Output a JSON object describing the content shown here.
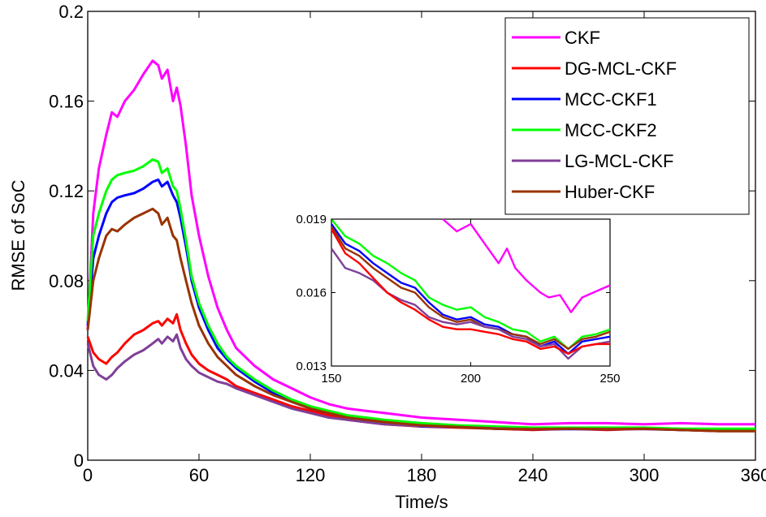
{
  "chart_data": {
    "type": "line",
    "title": "",
    "xlabel": "Time/s",
    "ylabel": "RMSE of SoC",
    "xlim": [
      0,
      360
    ],
    "ylim": [
      0,
      0.2
    ],
    "xticks": [
      0,
      60,
      120,
      180,
      240,
      300,
      360
    ],
    "yticks": [
      0,
      0.04,
      0.08,
      0.12,
      0.16,
      0.2
    ],
    "xtick_labels": [
      "0",
      "60",
      "120",
      "180",
      "240",
      "300",
      "360"
    ],
    "ytick_labels": [
      "0",
      "0.04",
      "0.08",
      "0.12",
      "0.16",
      "0.2"
    ],
    "grid": false,
    "legend_position": "top-right",
    "series": [
      {
        "name": "CKF",
        "color": "#ff00ff",
        "x": [
          0,
          3,
          6,
          10,
          13,
          16,
          20,
          25,
          30,
          35,
          38,
          40,
          43,
          46,
          48,
          50,
          53,
          56,
          60,
          65,
          70,
          75,
          80,
          90,
          100,
          110,
          120,
          130,
          140,
          150,
          160,
          180,
          200,
          220,
          240,
          260,
          280,
          300,
          320,
          340,
          360
        ],
        "y": [
          0.058,
          0.11,
          0.13,
          0.145,
          0.155,
          0.153,
          0.16,
          0.165,
          0.172,
          0.178,
          0.176,
          0.17,
          0.174,
          0.16,
          0.166,
          0.158,
          0.14,
          0.118,
          0.1,
          0.082,
          0.068,
          0.058,
          0.05,
          0.042,
          0.036,
          0.032,
          0.028,
          0.025,
          0.023,
          0.022,
          0.021,
          0.019,
          0.018,
          0.017,
          0.016,
          0.0165,
          0.0165,
          0.016,
          0.0165,
          0.016,
          0.016
        ]
      },
      {
        "name": "DG-MCL-CKF",
        "color": "#ff0000",
        "x": [
          0,
          3,
          6,
          10,
          13,
          16,
          20,
          25,
          30,
          35,
          38,
          40,
          43,
          46,
          48,
          50,
          53,
          56,
          60,
          65,
          70,
          75,
          80,
          90,
          100,
          110,
          120,
          130,
          140,
          150,
          160,
          180,
          200,
          220,
          240,
          260,
          280,
          300,
          320,
          340,
          360
        ],
        "y": [
          0.055,
          0.048,
          0.045,
          0.043,
          0.046,
          0.048,
          0.052,
          0.056,
          0.058,
          0.061,
          0.062,
          0.06,
          0.063,
          0.061,
          0.065,
          0.058,
          0.052,
          0.047,
          0.043,
          0.04,
          0.038,
          0.036,
          0.033,
          0.03,
          0.027,
          0.024,
          0.022,
          0.02,
          0.018,
          0.017,
          0.016,
          0.015,
          0.0145,
          0.014,
          0.0135,
          0.014,
          0.0135,
          0.014,
          0.0135,
          0.013,
          0.013
        ]
      },
      {
        "name": "MCC-CKF1",
        "color": "#0000ff",
        "x": [
          0,
          3,
          6,
          10,
          13,
          16,
          20,
          25,
          30,
          35,
          38,
          40,
          43,
          46,
          48,
          50,
          53,
          56,
          60,
          65,
          70,
          75,
          80,
          90,
          100,
          110,
          120,
          130,
          140,
          150,
          160,
          180,
          200,
          220,
          240,
          260,
          280,
          300,
          320,
          340,
          360
        ],
        "y": [
          0.06,
          0.09,
          0.1,
          0.11,
          0.115,
          0.117,
          0.118,
          0.119,
          0.121,
          0.124,
          0.125,
          0.122,
          0.124,
          0.118,
          0.115,
          0.108,
          0.095,
          0.08,
          0.068,
          0.058,
          0.05,
          0.045,
          0.041,
          0.035,
          0.03,
          0.026,
          0.023,
          0.021,
          0.019,
          0.018,
          0.017,
          0.015,
          0.0148,
          0.014,
          0.0138,
          0.0138,
          0.0138,
          0.014,
          0.0135,
          0.0135,
          0.0135
        ]
      },
      {
        "name": "MCC-CKF2",
        "color": "#00ff00",
        "x": [
          0,
          3,
          6,
          10,
          13,
          16,
          20,
          25,
          30,
          35,
          38,
          40,
          43,
          46,
          48,
          50,
          53,
          56,
          60,
          65,
          70,
          75,
          80,
          90,
          100,
          110,
          120,
          130,
          140,
          150,
          160,
          180,
          200,
          220,
          240,
          260,
          280,
          300,
          320,
          340,
          360
        ],
        "y": [
          0.062,
          0.1,
          0.11,
          0.12,
          0.125,
          0.127,
          0.128,
          0.129,
          0.131,
          0.134,
          0.133,
          0.128,
          0.13,
          0.122,
          0.12,
          0.112,
          0.098,
          0.082,
          0.07,
          0.06,
          0.052,
          0.046,
          0.042,
          0.036,
          0.031,
          0.027,
          0.024,
          0.022,
          0.02,
          0.019,
          0.018,
          0.0165,
          0.0155,
          0.015,
          0.0145,
          0.0145,
          0.0145,
          0.0145,
          0.014,
          0.014,
          0.014
        ]
      },
      {
        "name": "LG-MCL-CKF",
        "color": "#7f3f98",
        "x": [
          0,
          3,
          6,
          10,
          13,
          16,
          20,
          25,
          30,
          35,
          38,
          40,
          43,
          46,
          48,
          50,
          53,
          56,
          60,
          65,
          70,
          75,
          80,
          90,
          100,
          110,
          120,
          130,
          140,
          150,
          160,
          180,
          200,
          220,
          240,
          260,
          280,
          300,
          320,
          340,
          360
        ],
        "y": [
          0.052,
          0.042,
          0.038,
          0.036,
          0.038,
          0.041,
          0.044,
          0.047,
          0.049,
          0.052,
          0.054,
          0.052,
          0.055,
          0.053,
          0.056,
          0.05,
          0.045,
          0.042,
          0.039,
          0.037,
          0.035,
          0.034,
          0.032,
          0.029,
          0.026,
          0.023,
          0.021,
          0.019,
          0.018,
          0.017,
          0.016,
          0.0152,
          0.0148,
          0.0142,
          0.0138,
          0.014,
          0.0138,
          0.0138,
          0.0135,
          0.013,
          0.013
        ]
      },
      {
        "name": "Huber-CKF",
        "color": "#993300",
        "x": [
          0,
          3,
          6,
          10,
          13,
          16,
          20,
          25,
          30,
          35,
          38,
          40,
          43,
          46,
          48,
          50,
          53,
          56,
          60,
          65,
          70,
          75,
          80,
          90,
          100,
          110,
          120,
          130,
          140,
          150,
          160,
          180,
          200,
          220,
          240,
          260,
          280,
          300,
          320,
          340,
          360
        ],
        "y": [
          0.058,
          0.08,
          0.09,
          0.1,
          0.103,
          0.102,
          0.105,
          0.108,
          0.11,
          0.112,
          0.11,
          0.105,
          0.108,
          0.1,
          0.098,
          0.09,
          0.08,
          0.07,
          0.06,
          0.052,
          0.046,
          0.042,
          0.038,
          0.033,
          0.029,
          0.026,
          0.023,
          0.021,
          0.019,
          0.018,
          0.017,
          0.0155,
          0.0148,
          0.014,
          0.0138,
          0.014,
          0.0138,
          0.014,
          0.0135,
          0.013,
          0.013
        ]
      }
    ],
    "inset": {
      "xlim": [
        150,
        250
      ],
      "ylim": [
        0.013,
        0.019
      ],
      "xticks": [
        150,
        200,
        250
      ],
      "yticks": [
        0.013,
        0.016,
        0.019
      ],
      "xtick_labels": [
        "150",
        "200",
        "250"
      ],
      "ytick_labels": [
        "0.013",
        "0.016",
        "0.019"
      ],
      "series": [
        {
          "name": "CKF",
          "color": "#ff00ff",
          "x": [
            190,
            195,
            200,
            205,
            210,
            213,
            216,
            220,
            225,
            228,
            232,
            236,
            240,
            244,
            248,
            250
          ],
          "y": [
            0.019,
            0.0185,
            0.0188,
            0.018,
            0.0172,
            0.0178,
            0.017,
            0.0165,
            0.016,
            0.0158,
            0.0159,
            0.0152,
            0.0158,
            0.016,
            0.0162,
            0.0163
          ]
        },
        {
          "name": "MCC-CKF2",
          "color": "#00ff00",
          "x": [
            150,
            155,
            160,
            165,
            170,
            175,
            180,
            185,
            190,
            195,
            200,
            205,
            210,
            215,
            220,
            225,
            230,
            235,
            240,
            245,
            250
          ],
          "y": [
            0.019,
            0.0183,
            0.018,
            0.0175,
            0.0172,
            0.0168,
            0.0165,
            0.0158,
            0.0155,
            0.0153,
            0.0154,
            0.015,
            0.0148,
            0.0145,
            0.0144,
            0.014,
            0.0142,
            0.0137,
            0.0142,
            0.0143,
            0.0145
          ]
        },
        {
          "name": "MCC-CKF1",
          "color": "#0000ff",
          "x": [
            150,
            155,
            160,
            165,
            170,
            175,
            180,
            185,
            190,
            195,
            200,
            205,
            210,
            215,
            220,
            225,
            230,
            235,
            240,
            245,
            250
          ],
          "y": [
            0.0188,
            0.018,
            0.0177,
            0.0172,
            0.0168,
            0.0164,
            0.0162,
            0.0156,
            0.0151,
            0.0149,
            0.015,
            0.0147,
            0.0146,
            0.0143,
            0.0142,
            0.0138,
            0.014,
            0.0135,
            0.014,
            0.0141,
            0.0142
          ]
        },
        {
          "name": "Huber-CKF",
          "color": "#993300",
          "x": [
            150,
            155,
            160,
            165,
            170,
            175,
            180,
            185,
            190,
            195,
            200,
            205,
            210,
            215,
            220,
            225,
            230,
            235,
            240,
            245,
            250
          ],
          "y": [
            0.0187,
            0.0178,
            0.0175,
            0.017,
            0.0166,
            0.0162,
            0.016,
            0.0154,
            0.015,
            0.0148,
            0.0149,
            0.0146,
            0.0145,
            0.0143,
            0.0142,
            0.0139,
            0.0141,
            0.0137,
            0.0141,
            0.0142,
            0.0144
          ]
        },
        {
          "name": "LG-MCL-CKF",
          "color": "#7f3f98",
          "x": [
            150,
            155,
            160,
            165,
            170,
            175,
            180,
            185,
            190,
            195,
            200,
            205,
            210,
            215,
            220,
            225,
            230,
            235,
            240,
            245,
            250
          ],
          "y": [
            0.0178,
            0.017,
            0.0168,
            0.0165,
            0.016,
            0.0157,
            0.0155,
            0.015,
            0.0148,
            0.0147,
            0.0148,
            0.0146,
            0.0145,
            0.0142,
            0.0141,
            0.0138,
            0.0139,
            0.0133,
            0.0138,
            0.0139,
            0.014
          ]
        },
        {
          "name": "DG-MCL-CKF",
          "color": "#ff0000",
          "x": [
            150,
            155,
            160,
            165,
            170,
            175,
            180,
            185,
            190,
            195,
            200,
            205,
            210,
            215,
            220,
            225,
            230,
            235,
            240,
            245,
            250
          ],
          "y": [
            0.0186,
            0.0176,
            0.0172,
            0.0166,
            0.016,
            0.0156,
            0.0153,
            0.0149,
            0.0146,
            0.0145,
            0.0145,
            0.0144,
            0.0143,
            0.0141,
            0.014,
            0.0137,
            0.0138,
            0.0135,
            0.0138,
            0.0139,
            0.0139
          ]
        }
      ]
    }
  }
}
